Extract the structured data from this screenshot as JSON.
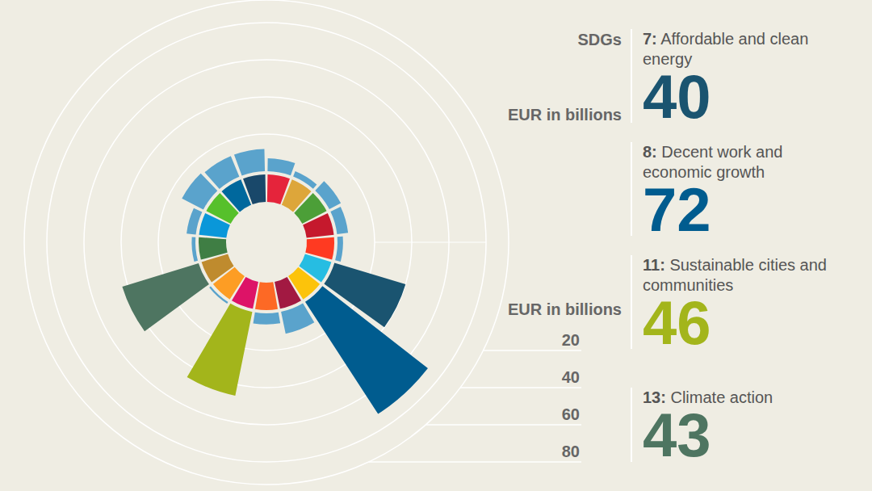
{
  "chart_data": {
    "type": "radial_bar",
    "title": "SDGs",
    "subtitle": "EUR in billions",
    "y_label": "EUR in billions",
    "categories": [
      null,
      null,
      null,
      null,
      null,
      null,
      null,
      null,
      null,
      null,
      null,
      null,
      null,
      null,
      null,
      null,
      null
    ],
    "values": [
      12,
      7,
      3,
      7,
      6,
      3,
      40,
      72,
      12,
      6,
      46,
      1,
      43,
      2,
      5,
      13,
      12
    ],
    "colors": [
      "#5aa3cc",
      "#5aa3cc",
      "#5aa3cc",
      "#5aa3cc",
      "#5aa3cc",
      "#5aa3cc",
      "#1a5470",
      "#005c8f",
      "#5aa3cc",
      "#5aa3cc",
      "#a3b51b",
      "#5aa3cc",
      "#4e7561",
      "#5aa3cc",
      "#5aa3cc",
      "#5aa3cc",
      "#5aa3cc"
    ],
    "ylim": [
      0,
      80
    ],
    "yticks": [
      20,
      40,
      60,
      80
    ],
    "grid": true,
    "tick_labels": "y",
    "annotations": [
      {
        "number": "7:",
        "text": "Affordable and clean energy",
        "value": 40,
        "color": "#1a5470"
      },
      {
        "number": "8:",
        "text": "Decent work and economic growth",
        "value": 72,
        "color": "#005c8f"
      },
      {
        "number": "11:",
        "text": "Sustainable cities and communities",
        "value": 46,
        "color": "#a3b51b"
      },
      {
        "number": "13:",
        "text": "Climate action",
        "value": 43,
        "color": "#4e7561"
      }
    ]
  }
}
